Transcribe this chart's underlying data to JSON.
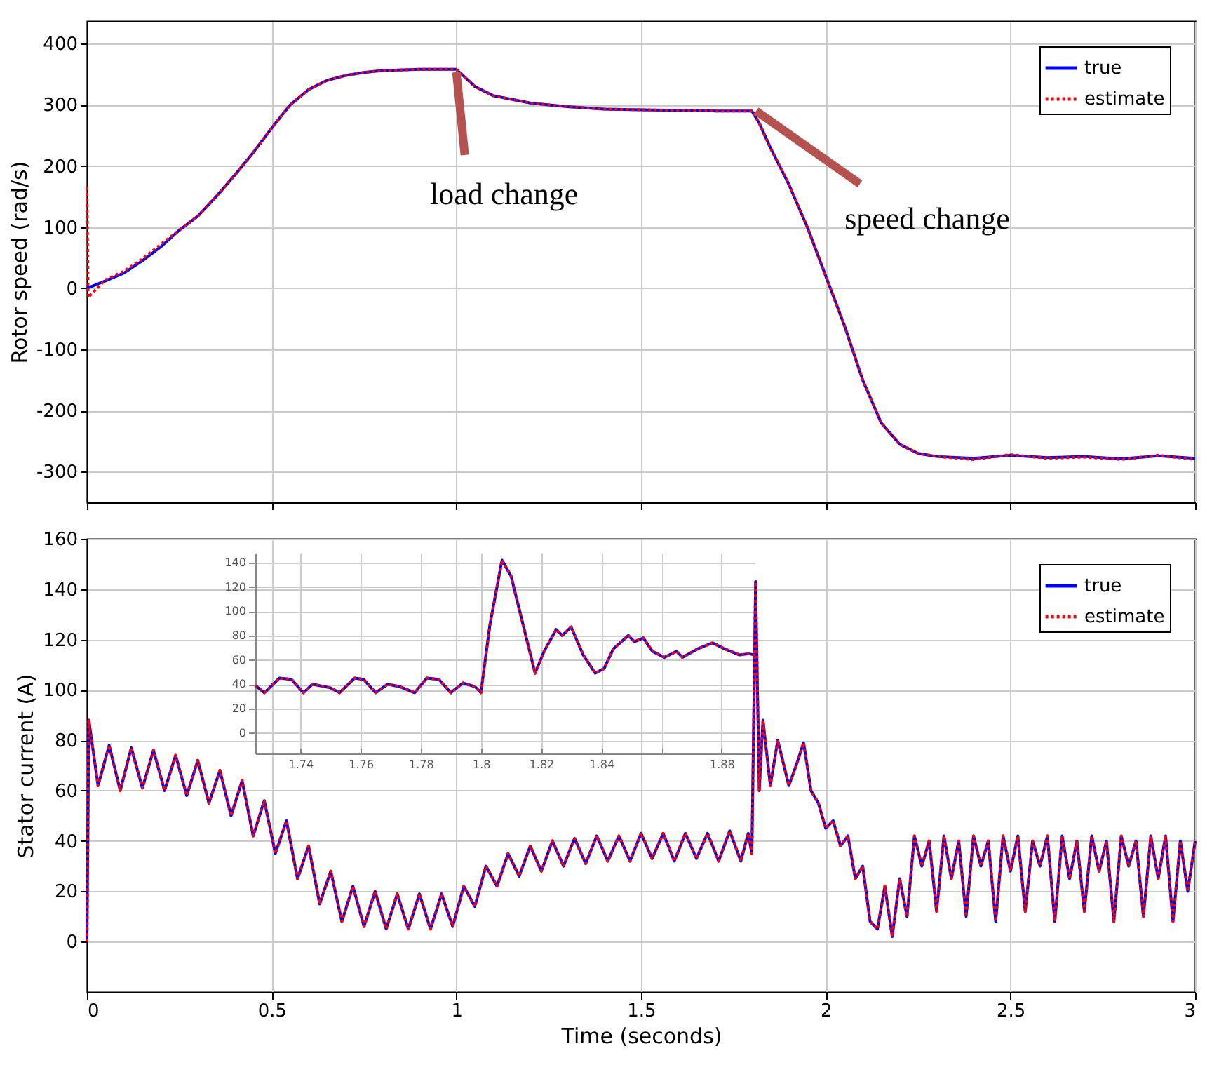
{
  "chart_data": [
    {
      "type": "line",
      "ylabel": "Rotor speed (rad/s)",
      "xlim": [
        0,
        3
      ],
      "xticks": [
        0,
        0.5,
        1,
        1.5,
        2,
        2.5,
        3
      ],
      "ylim": [
        -350,
        437
      ],
      "yticks": [
        -300,
        -200,
        -100,
        0,
        100,
        200,
        300,
        400
      ],
      "grid": true,
      "legend": "top right",
      "tick_labels": "y",
      "x": [
        0,
        0.05,
        0.1,
        0.15,
        0.2,
        0.25,
        0.3,
        0.35,
        0.4,
        0.45,
        0.5,
        0.55,
        0.6,
        0.65,
        0.7,
        0.75,
        0.8,
        0.9,
        1.0,
        1.05,
        1.1,
        1.2,
        1.3,
        1.4,
        1.5,
        1.6,
        1.7,
        1.8,
        1.82,
        1.85,
        1.9,
        1.95,
        2.0,
        2.05,
        2.1,
        2.15,
        2.2,
        2.25,
        2.3,
        2.4,
        2.5,
        2.6,
        2.7,
        2.8,
        2.9,
        3.0
      ],
      "series": [
        {
          "name": "true",
          "color": "#0000ff",
          "line_style": "solid",
          "values": [
            0,
            12,
            25,
            45,
            68,
            95,
            118,
            150,
            185,
            222,
            262,
            300,
            325,
            340,
            348,
            353,
            356,
            358,
            358,
            330,
            315,
            303,
            297,
            293,
            292,
            291,
            290,
            290,
            270,
            230,
            170,
            100,
            20,
            -60,
            -150,
            -220,
            -255,
            -270,
            -275,
            -278,
            -273,
            -277,
            -275,
            -279,
            -274,
            -278
          ]
        },
        {
          "name": "estimate",
          "color": "#ff0000",
          "line_style": "dotted",
          "x": [
            0,
            0.003,
            0.05,
            0.1,
            0.15,
            0.2,
            0.25,
            0.3,
            0.35,
            0.4,
            0.45,
            0.5,
            0.55,
            0.6,
            0.65,
            0.7,
            0.75,
            0.8,
            0.9,
            1.0,
            1.05,
            1.1,
            1.2,
            1.3,
            1.4,
            1.5,
            1.6,
            1.7,
            1.8,
            1.82,
            1.85,
            1.9,
            1.95,
            2.0,
            2.05,
            2.1,
            2.15,
            2.2,
            2.25,
            2.3,
            2.4,
            2.5,
            2.6,
            2.7,
            2.8,
            2.9,
            3.0
          ],
          "values": [
            165,
            -15,
            14,
            28,
            48,
            72,
            95,
            118,
            150,
            185,
            222,
            262,
            300,
            325,
            340,
            348,
            353,
            356,
            358,
            358,
            330,
            315,
            303,
            297,
            293,
            292,
            291,
            290,
            290,
            270,
            230,
            170,
            100,
            20,
            -60,
            -150,
            -220,
            -255,
            -270,
            -275,
            -280,
            -272,
            -278,
            -276,
            -280,
            -273,
            -280
          ]
        }
      ],
      "annotations": [
        {
          "text": "load change",
          "x": 1.0,
          "y": 358
        },
        {
          "text": "speed change",
          "x": 1.8,
          "y": 290
        }
      ]
    },
    {
      "type": "line",
      "ylabel": "Stator current (A)",
      "xlabel": "Time (seconds)",
      "xlim": [
        0,
        3
      ],
      "xticks": [
        0,
        0.5,
        1,
        1.5,
        2,
        2.5,
        3
      ],
      "ylim": [
        -20,
        160
      ],
      "yticks": [
        0,
        20,
        40,
        60,
        80,
        100,
        120,
        140,
        160
      ],
      "grid": true,
      "legend": "top right",
      "x": [
        0,
        0.005,
        0.03,
        0.06,
        0.09,
        0.12,
        0.15,
        0.18,
        0.21,
        0.24,
        0.27,
        0.3,
        0.33,
        0.36,
        0.39,
        0.42,
        0.45,
        0.48,
        0.51,
        0.54,
        0.57,
        0.6,
        0.63,
        0.66,
        0.69,
        0.72,
        0.75,
        0.78,
        0.81,
        0.84,
        0.87,
        0.9,
        0.93,
        0.96,
        0.99,
        1.02,
        1.05,
        1.08,
        1.11,
        1.14,
        1.17,
        1.2,
        1.23,
        1.26,
        1.29,
        1.32,
        1.35,
        1.38,
        1.41,
        1.44,
        1.47,
        1.5,
        1.53,
        1.56,
        1.59,
        1.62,
        1.65,
        1.68,
        1.71,
        1.74,
        1.77,
        1.79,
        1.8,
        1.81,
        1.82,
        1.83,
        1.85,
        1.87,
        1.9,
        1.92,
        1.94,
        1.96,
        1.98,
        2.0,
        2.02,
        2.04,
        2.06,
        2.08,
        2.1,
        2.12,
        2.14,
        2.16,
        2.18,
        2.2,
        2.22,
        2.24,
        2.26,
        2.28,
        2.3,
        2.32,
        2.34,
        2.36,
        2.38,
        2.4,
        2.42,
        2.44,
        2.46,
        2.48,
        2.5,
        2.52,
        2.54,
        2.56,
        2.58,
        2.6,
        2.62,
        2.64,
        2.66,
        2.68,
        2.7,
        2.72,
        2.74,
        2.76,
        2.78,
        2.8,
        2.82,
        2.84,
        2.86,
        2.88,
        2.9,
        2.92,
        2.94,
        2.96,
        2.98,
        3.0
      ],
      "series": [
        {
          "name": "true",
          "color": "#0000ff",
          "line_style": "solid",
          "values": [
            0,
            88,
            62,
            78,
            60,
            77,
            61,
            76,
            60,
            74,
            58,
            72,
            55,
            68,
            50,
            64,
            42,
            56,
            35,
            48,
            25,
            38,
            15,
            28,
            8,
            22,
            6,
            20,
            5,
            19,
            5,
            19,
            5,
            19,
            6,
            22,
            14,
            30,
            22,
            35,
            26,
            38,
            28,
            40,
            30,
            41,
            31,
            42,
            32,
            42,
            32,
            43,
            33,
            43,
            32,
            43,
            33,
            43,
            32,
            44,
            32,
            43,
            35,
            143,
            60,
            88,
            62,
            80,
            62,
            70,
            79,
            60,
            55,
            45,
            48,
            38,
            42,
            25,
            30,
            8,
            5,
            22,
            2,
            25,
            10,
            42,
            30,
            40,
            12,
            42,
            25,
            40,
            10,
            42,
            30,
            40,
            8,
            42,
            28,
            42,
            12,
            40,
            30,
            42,
            8,
            42,
            25,
            40,
            12,
            42,
            28,
            40,
            8,
            42,
            30,
            40,
            10,
            42,
            25,
            42,
            8,
            40,
            20,
            40
          ]
        },
        {
          "name": "estimate",
          "color": "#ff0000",
          "line_style": "dotted",
          "values": [
            0,
            88,
            62,
            78,
            60,
            77,
            61,
            76,
            60,
            74,
            58,
            72,
            55,
            68,
            50,
            64,
            42,
            56,
            35,
            48,
            25,
            38,
            15,
            28,
            8,
            22,
            6,
            20,
            5,
            19,
            5,
            19,
            5,
            19,
            6,
            22,
            14,
            30,
            22,
            35,
            26,
            38,
            28,
            40,
            30,
            41,
            31,
            42,
            32,
            42,
            32,
            43,
            33,
            43,
            32,
            43,
            33,
            43,
            32,
            44,
            32,
            43,
            35,
            143,
            60,
            88,
            62,
            80,
            62,
            70,
            79,
            60,
            55,
            45,
            48,
            38,
            42,
            25,
            30,
            8,
            5,
            22,
            2,
            25,
            10,
            42,
            30,
            40,
            12,
            42,
            25,
            40,
            10,
            42,
            30,
            40,
            8,
            42,
            28,
            42,
            12,
            40,
            30,
            42,
            8,
            42,
            25,
            40,
            12,
            42,
            28,
            40,
            8,
            42,
            30,
            40,
            10,
            42,
            25,
            42,
            8,
            40,
            20,
            40
          ]
        }
      ]
    },
    {
      "type": "line",
      "xlim": [
        1.725,
        1.891
      ],
      "xticks": [
        1.74,
        1.76,
        1.78,
        1.8,
        1.82,
        1.84,
        {
          "value": 1.86,
          "label": null
        },
        1.88
      ],
      "ylim": [
        -17,
        148
      ],
      "yticks": [
        0,
        20,
        40,
        60,
        80,
        100,
        120,
        140
      ],
      "grid": true,
      "x": [
        1.725,
        1.728,
        1.733,
        1.737,
        1.741,
        1.744,
        1.75,
        1.753,
        1.758,
        1.761,
        1.765,
        1.769,
        1.773,
        1.778,
        1.782,
        1.786,
        1.79,
        1.794,
        1.798,
        1.8,
        1.803,
        1.807,
        1.81,
        1.814,
        1.818,
        1.821,
        1.825,
        1.827,
        1.83,
        1.834,
        1.838,
        1.841,
        1.844,
        1.849,
        1.851,
        1.854,
        1.857,
        1.861,
        1.865,
        1.867,
        1.872,
        1.877,
        1.881,
        1.886,
        1.889,
        1.891
      ],
      "series": [
        {
          "color": "#0000ff",
          "line_style": "solid",
          "values": [
            39,
            33,
            45,
            44,
            33,
            40,
            37,
            33,
            45,
            44,
            33,
            40,
            38,
            33,
            45,
            44,
            33,
            41,
            38,
            33,
            89,
            142,
            129,
            89,
            49,
            67,
            85,
            80,
            87,
            64,
            49,
            53,
            69,
            80,
            75,
            78,
            67,
            62,
            67,
            62,
            69,
            74,
            69,
            64,
            65,
            64
          ]
        },
        {
          "color": "#ff0000",
          "line_style": "dotted",
          "values": [
            39,
            33,
            45,
            44,
            33,
            40,
            37,
            33,
            45,
            44,
            33,
            40,
            38,
            33,
            45,
            44,
            33,
            41,
            38,
            33,
            89,
            142,
            129,
            89,
            49,
            67,
            85,
            80,
            87,
            64,
            49,
            53,
            69,
            80,
            75,
            78,
            67,
            62,
            67,
            62,
            69,
            74,
            69,
            64,
            65,
            64
          ]
        }
      ]
    }
  ]
}
